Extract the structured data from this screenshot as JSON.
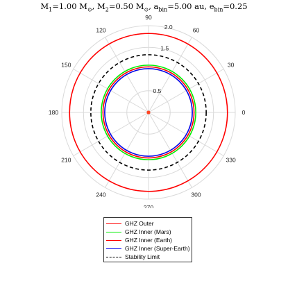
{
  "title": {
    "m1_label": "M",
    "m1_sub": "1",
    "m1_value": "=1.00 M",
    "m1_unit_sub": "⊙",
    "m2_label": "M",
    "m2_sub": "2",
    "m2_value": "=0.50 M",
    "m2_unit_sub": "⊙",
    "abin_label": "a",
    "abin_sub": "bin",
    "abin_value": "=5.00 au",
    "ebin_label": "e",
    "ebin_sub": "bin",
    "ebin_value": "=0.25"
  },
  "chart_data": {
    "type": "polar",
    "r_max": 2.0,
    "radial_ticks": [
      0.5,
      1.0,
      1.5,
      2.0
    ],
    "radial_tick_labels": [
      "0.5",
      "",
      "1.5",
      "2.0"
    ],
    "angular_ticks_deg": [
      0,
      30,
      60,
      90,
      120,
      150,
      180,
      210,
      240,
      270,
      300,
      330
    ],
    "angular_tick_labels": [
      "0",
      "30",
      "60",
      "90",
      "120",
      "150",
      "180",
      "210",
      "240",
      "270",
      "300",
      "330"
    ],
    "grid": true,
    "center_marker": {
      "color": "#ff4422"
    },
    "series": [
      {
        "name": "GHZ Outer",
        "radius": 1.82,
        "color": "#ff0000",
        "style": "solid"
      },
      {
        "name": "GHZ Inner (Mars)",
        "radius": 1.09,
        "color": "#00ee00",
        "style": "solid"
      },
      {
        "name": "GHZ Inner (Earth)",
        "radius": 1.05,
        "color": "#ff0000",
        "style": "solid"
      },
      {
        "name": "GHZ Inner (Super-Earth)",
        "radius": 1.01,
        "color": "#0000ee",
        "style": "solid"
      },
      {
        "name": "Stability Limit",
        "radius": 1.33,
        "color": "#000000",
        "style": "dashed"
      }
    ],
    "legend_position": "bottom"
  }
}
